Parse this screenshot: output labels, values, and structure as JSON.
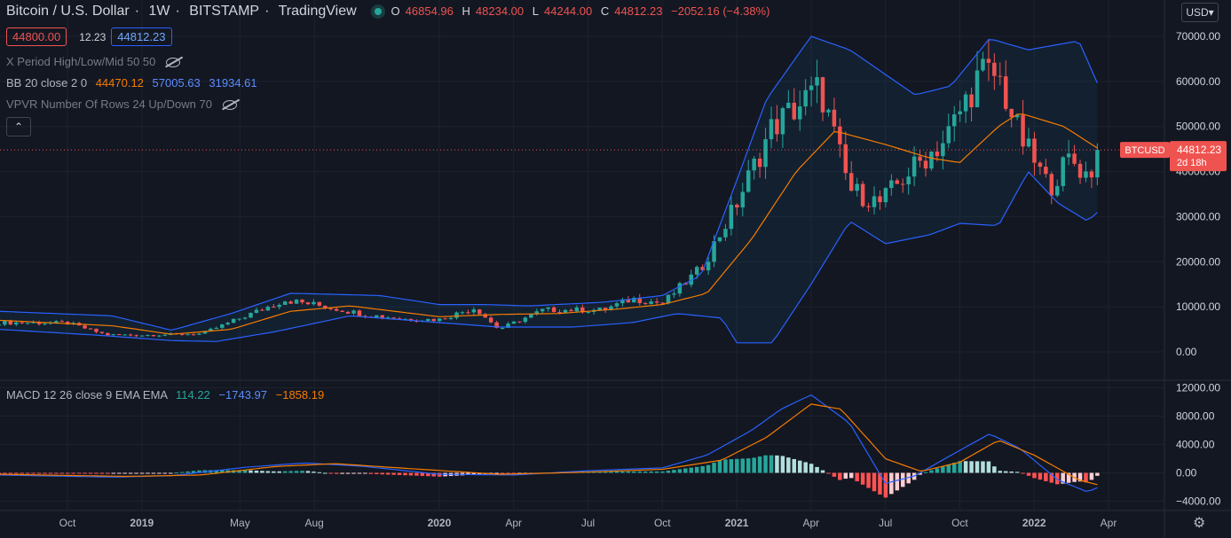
{
  "header": {
    "symbol_name": "Bitcoin / U.S. Dollar",
    "interval": "1W",
    "exchange": "BITSTAMP",
    "provider": "TradingView",
    "open_label": "O",
    "open": "46854.96",
    "high_label": "H",
    "high": "48234.00",
    "low_label": "L",
    "low": "44244.00",
    "close_label": "C",
    "close": "44812.23",
    "change": "−2052.16 (−4.38%)"
  },
  "quote": {
    "bid": "44800.00",
    "spread": "12.23",
    "ask": "44812.23"
  },
  "indicators": {
    "xperiod": "X Period High/Low/Mid 50 50",
    "bb_label": "BB 20 close 2 0",
    "bb_basis": "44470.12",
    "bb_upper": "57005.63",
    "bb_lower": "31934.61",
    "vpvr": "VPVR Number Of Rows 24 Up/Down 70",
    "collapse_glyph": "⌃"
  },
  "macd": {
    "label": "MACD 12 26 close 9 EMA EMA",
    "hist": "114.22",
    "macd": "−1743.97",
    "signal": "−1858.19"
  },
  "currency": "USD",
  "price_tag": {
    "symbol": "BTCUSD",
    "price": "44812.23",
    "countdown": "2d 18h"
  },
  "colors": {
    "up": "#26a69a",
    "down": "#ef5350",
    "bb_band": "#2962ff",
    "bb_basis": "#f57c00",
    "macd_line": "#2962ff",
    "signal_line": "#f57c00",
    "hist_up_strong": "#26a69a",
    "hist_up_weak": "#b2dfdb",
    "hist_down_strong": "#ff5252",
    "hist_down_weak": "#ffcdd2",
    "background": "#131722",
    "grid": "#1e222d"
  },
  "chart_data": [
    {
      "type": "candlestick",
      "series": [
        {
          "name": "Bitcoin / U.S. Dollar"
        },
        {
          "name": "BB basis"
        },
        {
          "name": "BB upper"
        },
        {
          "name": "BB lower"
        }
      ],
      "ylim": [
        -5000,
        75000
      ],
      "yticks": [
        "70000.00",
        "60000.00",
        "50000.00",
        "40000.00",
        "30000.00",
        "20000.00",
        "10000.00",
        "0.00"
      ],
      "ytick_values": [
        70000,
        60000,
        50000,
        40000,
        30000,
        20000,
        10000,
        0
      ],
      "xticks": [
        {
          "label": "Oct",
          "t": 2018.75
        },
        {
          "label": "2019",
          "t": 2019.0
        },
        {
          "label": "May",
          "t": 2019.33
        },
        {
          "label": "Aug",
          "t": 2019.58
        },
        {
          "label": "2020",
          "t": 2020.0
        },
        {
          "label": "Apr",
          "t": 2020.25
        },
        {
          "label": "Jul",
          "t": 2020.5
        },
        {
          "label": "Oct",
          "t": 2020.75
        },
        {
          "label": "2021",
          "t": 2021.0
        },
        {
          "label": "Apr",
          "t": 2021.25
        },
        {
          "label": "Jul",
          "t": 2021.5
        },
        {
          "label": "Oct",
          "t": 2021.75
        },
        {
          "label": "2022",
          "t": 2022.0
        },
        {
          "label": "Apr",
          "t": 2022.25
        }
      ],
      "key_closes": [
        {
          "t": 2018.52,
          "c": 6500
        },
        {
          "t": 2018.75,
          "c": 6400
        },
        {
          "t": 2018.88,
          "c": 3800
        },
        {
          "t": 2019.0,
          "c": 3700
        },
        {
          "t": 2019.2,
          "c": 4000
        },
        {
          "t": 2019.35,
          "c": 8000
        },
        {
          "t": 2019.48,
          "c": 11500
        },
        {
          "t": 2019.58,
          "c": 10500
        },
        {
          "t": 2019.75,
          "c": 8300
        },
        {
          "t": 2019.9,
          "c": 7200
        },
        {
          "t": 2020.0,
          "c": 7200
        },
        {
          "t": 2020.12,
          "c": 9800
        },
        {
          "t": 2020.2,
          "c": 5000
        },
        {
          "t": 2020.35,
          "c": 9300
        },
        {
          "t": 2020.55,
          "c": 9300
        },
        {
          "t": 2020.65,
          "c": 11800
        },
        {
          "t": 2020.75,
          "c": 10800
        },
        {
          "t": 2020.88,
          "c": 18500
        },
        {
          "t": 2021.0,
          "c": 33000
        },
        {
          "t": 2021.12,
          "c": 50000
        },
        {
          "t": 2021.28,
          "c": 58500
        },
        {
          "t": 2021.38,
          "c": 36000
        },
        {
          "t": 2021.48,
          "c": 33000
        },
        {
          "t": 2021.58,
          "c": 40000
        },
        {
          "t": 2021.7,
          "c": 47000
        },
        {
          "t": 2021.82,
          "c": 62000
        },
        {
          "t": 2021.88,
          "c": 61000
        },
        {
          "t": 2021.95,
          "c": 48000
        },
        {
          "t": 2022.05,
          "c": 36500
        },
        {
          "t": 2022.12,
          "c": 43000
        },
        {
          "t": 2022.18,
          "c": 39000
        },
        {
          "t": 2022.23,
          "c": 44812
        }
      ],
      "bb_upper_points": [
        {
          "t": 2018.52,
          "v": 9000
        },
        {
          "t": 2018.9,
          "v": 8000
        },
        {
          "t": 2019.1,
          "v": 4800
        },
        {
          "t": 2019.3,
          "v": 8500
        },
        {
          "t": 2019.5,
          "v": 13000
        },
        {
          "t": 2019.8,
          "v": 12500
        },
        {
          "t": 2020.0,
          "v": 10500
        },
        {
          "t": 2020.15,
          "v": 10500
        },
        {
          "t": 2020.3,
          "v": 10200
        },
        {
          "t": 2020.55,
          "v": 11000
        },
        {
          "t": 2020.75,
          "v": 12500
        },
        {
          "t": 2020.88,
          "v": 17000
        },
        {
          "t": 2021.0,
          "v": 38000
        },
        {
          "t": 2021.1,
          "v": 56000
        },
        {
          "t": 2021.25,
          "v": 70000
        },
        {
          "t": 2021.38,
          "v": 67000
        },
        {
          "t": 2021.6,
          "v": 57000
        },
        {
          "t": 2021.72,
          "v": 59000
        },
        {
          "t": 2021.85,
          "v": 69500
        },
        {
          "t": 2021.98,
          "v": 67000
        },
        {
          "t": 2022.15,
          "v": 69000
        },
        {
          "t": 2022.23,
          "v": 57000
        }
      ],
      "bb_basis_points": [
        {
          "t": 2018.52,
          "v": 7000
        },
        {
          "t": 2018.9,
          "v": 5800
        },
        {
          "t": 2019.1,
          "v": 3900
        },
        {
          "t": 2019.3,
          "v": 5000
        },
        {
          "t": 2019.5,
          "v": 9000
        },
        {
          "t": 2019.7,
          "v": 10200
        },
        {
          "t": 2020.0,
          "v": 7800
        },
        {
          "t": 2020.2,
          "v": 8300
        },
        {
          "t": 2020.4,
          "v": 8500
        },
        {
          "t": 2020.6,
          "v": 9500
        },
        {
          "t": 2020.75,
          "v": 10500
        },
        {
          "t": 2020.9,
          "v": 13000
        },
        {
          "t": 2021.05,
          "v": 25000
        },
        {
          "t": 2021.2,
          "v": 40000
        },
        {
          "t": 2021.33,
          "v": 49000
        },
        {
          "t": 2021.5,
          "v": 46000
        },
        {
          "t": 2021.65,
          "v": 43000
        },
        {
          "t": 2021.75,
          "v": 42000
        },
        {
          "t": 2021.88,
          "v": 50000
        },
        {
          "t": 2021.95,
          "v": 53000
        },
        {
          "t": 2022.1,
          "v": 50000
        },
        {
          "t": 2022.23,
          "v": 44470
        }
      ],
      "bb_lower_points": [
        {
          "t": 2018.52,
          "v": 5000
        },
        {
          "t": 2018.85,
          "v": 3700
        },
        {
          "t": 2019.1,
          "v": 2500
        },
        {
          "t": 2019.25,
          "v": 2300
        },
        {
          "t": 2019.45,
          "v": 4500
        },
        {
          "t": 2019.7,
          "v": 8000
        },
        {
          "t": 2020.0,
          "v": 6500
        },
        {
          "t": 2020.2,
          "v": 5500
        },
        {
          "t": 2020.45,
          "v": 5500
        },
        {
          "t": 2020.65,
          "v": 6500
        },
        {
          "t": 2020.8,
          "v": 8500
        },
        {
          "t": 2020.95,
          "v": 7500
        },
        {
          "t": 2021.0,
          "v": 2000
        },
        {
          "t": 2021.12,
          "v": 2000
        },
        {
          "t": 2021.25,
          "v": 15000
        },
        {
          "t": 2021.38,
          "v": 29000
        },
        {
          "t": 2021.5,
          "v": 24000
        },
        {
          "t": 2021.65,
          "v": 26000
        },
        {
          "t": 2021.75,
          "v": 28500
        },
        {
          "t": 2021.88,
          "v": 28000
        },
        {
          "t": 2021.98,
          "v": 40000
        },
        {
          "t": 2022.08,
          "v": 33000
        },
        {
          "t": 2022.18,
          "v": 29000
        },
        {
          "t": 2022.23,
          "v": 32000
        }
      ],
      "current_price": 44812.23
    },
    {
      "type": "bar",
      "series": [
        {
          "name": "Histogram"
        },
        {
          "name": "MACD"
        },
        {
          "name": "Signal"
        }
      ],
      "ylim": [
        -5000,
        12500
      ],
      "yticks": [
        "12000.00",
        "8000.00",
        "4000.00",
        "0.00",
        "−4000.00"
      ],
      "ytick_values": [
        12000,
        8000,
        4000,
        0,
        -4000
      ],
      "macd_points": [
        {
          "t": 2018.52,
          "v": -300
        },
        {
          "t": 2018.9,
          "v": -600
        },
        {
          "t": 2019.1,
          "v": -400
        },
        {
          "t": 2019.35,
          "v": 800
        },
        {
          "t": 2019.55,
          "v": 1400
        },
        {
          "t": 2019.75,
          "v": 900
        },
        {
          "t": 2020.0,
          "v": -200
        },
        {
          "t": 2020.25,
          "v": -300
        },
        {
          "t": 2020.5,
          "v": 300
        },
        {
          "t": 2020.75,
          "v": 700
        },
        {
          "t": 2020.9,
          "v": 2500
        },
        {
          "t": 2021.05,
          "v": 6000
        },
        {
          "t": 2021.15,
          "v": 9000
        },
        {
          "t": 2021.25,
          "v": 11000
        },
        {
          "t": 2021.38,
          "v": 7000
        },
        {
          "t": 2021.5,
          "v": -1500
        },
        {
          "t": 2021.6,
          "v": -400
        },
        {
          "t": 2021.7,
          "v": 2000
        },
        {
          "t": 2021.85,
          "v": 5500
        },
        {
          "t": 2021.95,
          "v": 3500
        },
        {
          "t": 2022.08,
          "v": -1000
        },
        {
          "t": 2022.18,
          "v": -2700
        },
        {
          "t": 2022.23,
          "v": -1744
        }
      ],
      "signal_points": [
        {
          "t": 2018.52,
          "v": -200
        },
        {
          "t": 2018.95,
          "v": -500
        },
        {
          "t": 2019.2,
          "v": -300
        },
        {
          "t": 2019.45,
          "v": 900
        },
        {
          "t": 2019.65,
          "v": 1300
        },
        {
          "t": 2019.9,
          "v": 600
        },
        {
          "t": 2020.2,
          "v": -200
        },
        {
          "t": 2020.5,
          "v": 100
        },
        {
          "t": 2020.75,
          "v": 500
        },
        {
          "t": 2020.95,
          "v": 1800
        },
        {
          "t": 2021.1,
          "v": 5000
        },
        {
          "t": 2021.25,
          "v": 9700
        },
        {
          "t": 2021.35,
          "v": 9000
        },
        {
          "t": 2021.5,
          "v": 2000
        },
        {
          "t": 2021.62,
          "v": 200
        },
        {
          "t": 2021.75,
          "v": 1500
        },
        {
          "t": 2021.88,
          "v": 4600
        },
        {
          "t": 2022.0,
          "v": 2500
        },
        {
          "t": 2022.15,
          "v": -1000
        },
        {
          "t": 2022.23,
          "v": -1858
        }
      ]
    }
  ]
}
